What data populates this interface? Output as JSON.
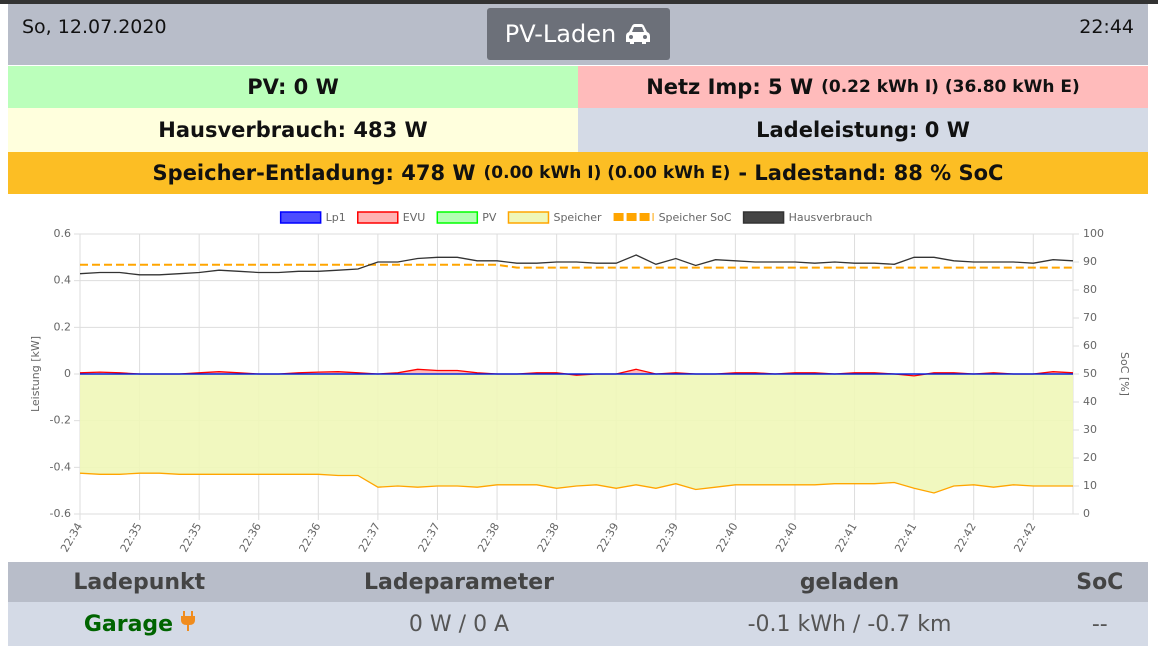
{
  "header": {
    "date": "So, 12.07.2020",
    "button": "PV-Laden",
    "time": "22:44"
  },
  "status": {
    "pv": "PV: 0 W",
    "netz": "Netz Imp: 5 W",
    "netz_detail": "(0.22 kWh I) (36.80 kWh E)",
    "hausverbrauch": "Hausverbrauch: 483 W",
    "ladeleistung": "Ladeleistung: 0 W",
    "speicher": "Speicher-Entladung: 478 W",
    "speicher_detail": "(0.00 kWh I) (0.00 kWh E)",
    "ladestand": "- Ladestand: 88 % SoC"
  },
  "chart_data": {
    "type": "line",
    "y_label": "Leistung [kW]",
    "y2_label": "SoC [%]",
    "categories": [
      "22:34",
      null,
      null,
      "22:35",
      null,
      null,
      "22:35",
      null,
      null,
      "22:36",
      null,
      null,
      "22:36",
      null,
      null,
      "22:37",
      null,
      null,
      "22:37",
      null,
      null,
      "22:38",
      null,
      null,
      "22:38",
      null,
      null,
      "22:39",
      null,
      null,
      "22:39",
      null,
      null,
      "22:40",
      null,
      null,
      "22:40",
      null,
      null,
      "22:41",
      null,
      null,
      "22:41",
      null,
      null,
      "22:42",
      null,
      null,
      "22:42",
      null,
      null
    ],
    "ylim": [
      -0.6,
      0.6
    ],
    "yticks": [
      0.6,
      0.4,
      0.2,
      0,
      -0.2,
      -0.4,
      -0.6
    ],
    "y2lim": [
      0,
      100
    ],
    "y2ticks": [
      100,
      90,
      80,
      70,
      60,
      50,
      40,
      30,
      20,
      10,
      0
    ],
    "grid": true,
    "series": [
      {
        "name": "Lp1",
        "color": "#0000ff",
        "fill": "#4d4dff",
        "values": [
          0,
          0,
          0,
          0,
          0,
          0,
          0,
          0,
          0,
          0,
          0,
          0,
          0,
          0,
          0,
          0,
          0,
          0,
          0,
          0,
          0,
          0,
          0,
          0,
          0,
          0,
          0,
          0,
          0,
          0,
          0,
          0,
          0,
          0,
          0,
          0,
          0,
          0,
          0,
          0,
          0,
          0,
          0,
          0,
          0,
          0,
          0,
          0,
          0,
          0,
          0
        ]
      },
      {
        "name": "EVU",
        "color": "#ff0000",
        "fill": "#ffb3b3",
        "area": true,
        "values": [
          0.005,
          0.008,
          0.005,
          0,
          0,
          0,
          0.005,
          0.01,
          0.005,
          0,
          0,
          0.005,
          0.008,
          0.01,
          0.005,
          0,
          0.005,
          0.02,
          0.015,
          0.015,
          0.005,
          0,
          0,
          0.005,
          0.005,
          -0.005,
          0,
          0,
          0.02,
          0,
          0.005,
          0,
          0,
          0.005,
          0.005,
          0,
          0.005,
          0.005,
          0,
          0.005,
          0.005,
          0,
          -0.008,
          0.005,
          0.005,
          0,
          0.005,
          0,
          0,
          0.01,
          0.005
        ]
      },
      {
        "name": "PV",
        "color": "#00ff00",
        "fill": "#b3ffb3",
        "values": [
          0,
          0,
          0,
          0,
          0,
          0,
          0,
          0,
          0,
          0,
          0,
          0,
          0,
          0,
          0,
          0,
          0,
          0,
          0,
          0,
          0,
          0,
          0,
          0,
          0,
          0,
          0,
          0,
          0,
          0,
          0,
          0,
          0,
          0,
          0,
          0,
          0,
          0,
          0,
          0,
          0,
          0,
          0,
          0,
          0,
          0,
          0,
          0,
          0,
          0,
          0
        ]
      },
      {
        "name": "Speicher",
        "color": "#ffa500",
        "fill": "#eff7b8",
        "area": true,
        "values": [
          -0.425,
          -0.43,
          -0.43,
          -0.425,
          -0.425,
          -0.43,
          -0.43,
          -0.43,
          -0.43,
          -0.43,
          -0.43,
          -0.43,
          -0.43,
          -0.435,
          -0.435,
          -0.485,
          -0.48,
          -0.485,
          -0.48,
          -0.48,
          -0.485,
          -0.475,
          -0.475,
          -0.475,
          -0.49,
          -0.48,
          -0.475,
          -0.49,
          -0.475,
          -0.49,
          -0.47,
          -0.495,
          -0.485,
          -0.475,
          -0.475,
          -0.475,
          -0.475,
          -0.475,
          -0.47,
          -0.47,
          -0.47,
          -0.465,
          -0.49,
          -0.51,
          -0.48,
          -0.475,
          -0.485,
          -0.475,
          -0.48,
          -0.48,
          -0.48
        ]
      },
      {
        "name": "Speicher SoC",
        "color": "#ffa500",
        "fill": "#ffa500",
        "dash": true,
        "axis": "y2",
        "values": [
          89,
          89,
          89,
          89,
          89,
          89,
          89,
          89,
          89,
          89,
          89,
          89,
          89,
          89,
          89,
          89,
          89,
          89,
          89,
          89,
          89,
          89,
          88,
          88,
          88,
          88,
          88,
          88,
          88,
          88,
          88,
          88,
          88,
          88,
          88,
          88,
          88,
          88,
          88,
          88,
          88,
          88,
          88,
          88,
          88,
          88,
          88,
          88,
          88,
          88,
          88
        ]
      },
      {
        "name": "Hausverbrauch",
        "color": "#333333",
        "fill": "#444444",
        "values": [
          0.43,
          0.435,
          0.435,
          0.425,
          0.425,
          0.43,
          0.435,
          0.445,
          0.44,
          0.435,
          0.435,
          0.44,
          0.44,
          0.445,
          0.45,
          0.48,
          0.48,
          0.495,
          0.5,
          0.5,
          0.485,
          0.485,
          0.475,
          0.475,
          0.48,
          0.48,
          0.475,
          0.475,
          0.51,
          0.47,
          0.495,
          0.465,
          0.49,
          0.485,
          0.48,
          0.48,
          0.48,
          0.475,
          0.48,
          0.475,
          0.475,
          0.47,
          0.5,
          0.5,
          0.485,
          0.48,
          0.48,
          0.48,
          0.475,
          0.49,
          0.485
        ]
      }
    ]
  },
  "table": {
    "headers": [
      "Ladepunkt",
      "Ladeparameter",
      "geladen",
      "SoC"
    ],
    "rows": [
      [
        "Garage",
        "0 W / 0 A",
        "-0.1 kWh / -0.7 km",
        "--"
      ]
    ]
  }
}
